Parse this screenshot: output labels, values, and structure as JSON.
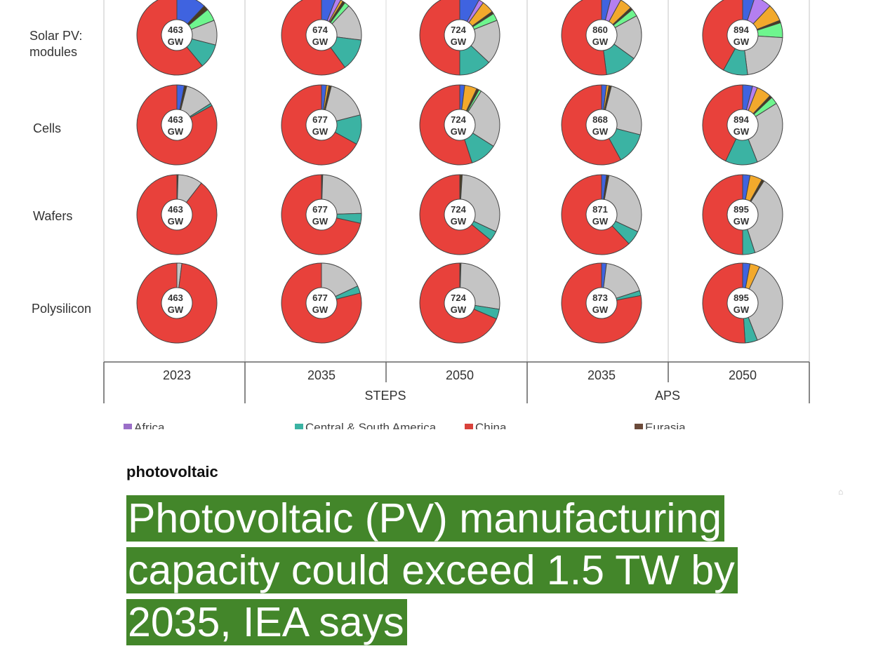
{
  "chart_data": {
    "type": "pie",
    "donut": true,
    "rows": [
      "Solar PV:\nmodules",
      "Cells",
      "Wafers",
      "Polysilicon"
    ],
    "columns": [
      {
        "year": "2023",
        "scenario": ""
      },
      {
        "year": "2035",
        "scenario": "STEPS"
      },
      {
        "year": "2050",
        "scenario": "STEPS"
      },
      {
        "year": "2035",
        "scenario": "APS"
      },
      {
        "year": "2050",
        "scenario": "APS"
      }
    ],
    "scenario_labels": [
      "STEPS",
      "APS"
    ],
    "segment_order": [
      "blue",
      "purple",
      "orange",
      "dark",
      "green",
      "gray",
      "teal",
      "red"
    ],
    "segment_colors": {
      "blue": "#3f63e0",
      "purple": "#b47ff0",
      "orange": "#f2a92c",
      "dark": "#4a3a20",
      "green": "#6ef58e",
      "gray": "#c4c4c4",
      "teal": "#3bb3a3",
      "red": "#e8413b"
    },
    "center_unit": "GW",
    "donuts": [
      [
        {
          "total": "463",
          "shares": {
            "blue": 12,
            "dark": 2,
            "green": 5,
            "gray": 10,
            "teal": 10,
            "red": 61
          }
        },
        {
          "total": "674",
          "shares": {
            "blue": 6,
            "purple": 2,
            "orange": 1,
            "dark": 1,
            "green": 2,
            "gray": 15,
            "teal": 13,
            "red": 60
          }
        },
        {
          "total": "724",
          "shares": {
            "blue": 8,
            "purple": 2,
            "orange": 5,
            "dark": 1,
            "green": 3,
            "gray": 18,
            "teal": 13,
            "red": 50
          }
        },
        {
          "total": "860",
          "shares": {
            "blue": 4,
            "purple": 4,
            "orange": 5,
            "dark": 1,
            "green": 3,
            "gray": 18,
            "teal": 13,
            "red": 52
          }
        },
        {
          "total": "894",
          "shares": {
            "blue": 5,
            "purple": 7,
            "orange": 7,
            "dark": 1,
            "green": 6,
            "gray": 22,
            "teal": 10,
            "red": 42
          }
        }
      ],
      [
        {
          "total": "463",
          "shares": {
            "blue": 3,
            "dark": 1,
            "gray": 12,
            "teal": 1,
            "red": 83
          }
        },
        {
          "total": "677",
          "shares": {
            "blue": 2,
            "orange": 1,
            "dark": 1,
            "gray": 17,
            "teal": 12,
            "red": 67
          }
        },
        {
          "total": "724",
          "shares": {
            "blue": 2,
            "orange": 5,
            "dark": 1,
            "green": 1,
            "gray": 25,
            "teal": 11,
            "red": 55
          }
        },
        {
          "total": "868",
          "shares": {
            "blue": 2,
            "orange": 1,
            "dark": 1,
            "gray": 25,
            "teal": 13,
            "red": 58
          }
        },
        {
          "total": "894",
          "shares": {
            "blue": 4,
            "purple": 2,
            "orange": 6,
            "dark": 1,
            "green": 3,
            "gray": 28,
            "teal": 13,
            "red": 43
          }
        }
      ],
      [
        {
          "total": "463",
          "shares": {
            "dark": 0.5,
            "gray": 10,
            "red": 89.5
          }
        },
        {
          "total": "677",
          "shares": {
            "dark": 0.5,
            "gray": 24,
            "teal": 4,
            "red": 71.5
          }
        },
        {
          "total": "724",
          "shares": {
            "dark": 1,
            "gray": 31,
            "teal": 4,
            "red": 64
          }
        },
        {
          "total": "871",
          "shares": {
            "blue": 2,
            "dark": 1,
            "gray": 29,
            "teal": 6,
            "red": 62
          }
        },
        {
          "total": "895",
          "shares": {
            "blue": 3,
            "orange": 5,
            "dark": 1,
            "gray": 36,
            "teal": 5,
            "red": 50
          }
        }
      ],
      [
        {
          "total": "463",
          "shares": {
            "gray": 2,
            "red": 98
          }
        },
        {
          "total": "677",
          "shares": {
            "gray": 18,
            "teal": 3,
            "red": 79
          }
        },
        {
          "total": "724",
          "shares": {
            "dark": 0.5,
            "gray": 27,
            "teal": 4,
            "red": 68.5
          }
        },
        {
          "total": "873",
          "shares": {
            "blue": 2,
            "gray": 18,
            "teal": 2,
            "red": 78
          }
        },
        {
          "total": "895",
          "shares": {
            "blue": 3,
            "orange": 4,
            "gray": 37,
            "teal": 5,
            "red": 51
          }
        }
      ]
    ],
    "legend": [
      {
        "label": "Africa",
        "color": "#9b6fc8"
      },
      {
        "label": "Central & South America",
        "color": "#3bb3a3"
      },
      {
        "label": "China",
        "color": "#d9423b"
      },
      {
        "label": "Eurasia",
        "color": "#6b4a3a"
      }
    ]
  },
  "article": {
    "category": "photovoltaic",
    "headline": "Photovoltaic (PV) manufacturing capacity could exceed 1.5 TW by 2035, IEA says",
    "headline_bg": "#43862a"
  }
}
